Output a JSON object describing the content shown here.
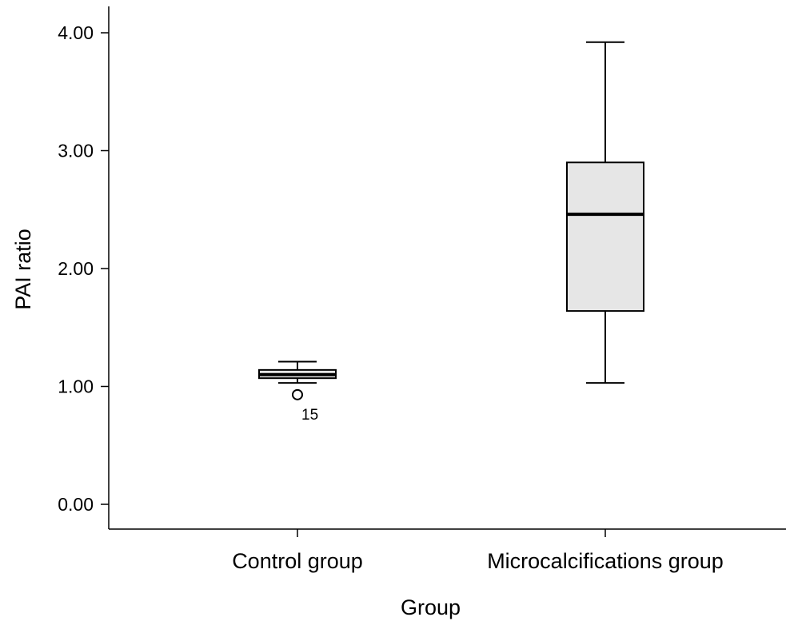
{
  "chart_data": {
    "type": "box",
    "xlabel": "Group",
    "ylabel": "PAI ratio",
    "ylim": [
      0,
      4.2
    ],
    "yticks": [
      {
        "value": 0,
        "label": "0.00"
      },
      {
        "value": 1,
        "label": "1.00"
      },
      {
        "value": 2,
        "label": "2.00"
      },
      {
        "value": 3,
        "label": "3.00"
      },
      {
        "value": 4,
        "label": "4.00"
      }
    ],
    "categories": [
      "Control group",
      "Microcalcifications group"
    ],
    "boxes": [
      {
        "category": "Control group",
        "whisker_low": 1.03,
        "q1": 1.07,
        "median": 1.1,
        "q3": 1.14,
        "whisker_high": 1.21,
        "outliers": [
          {
            "value": 0.93,
            "label": "15"
          }
        ]
      },
      {
        "category": "Microcalcifications group",
        "whisker_low": 1.03,
        "q1": 1.64,
        "median": 2.46,
        "q3": 2.9,
        "whisker_high": 3.92,
        "outliers": []
      }
    ],
    "box_fill": "#e6e6e6",
    "line_color": "#000000",
    "grid": false,
    "legend": "none"
  }
}
